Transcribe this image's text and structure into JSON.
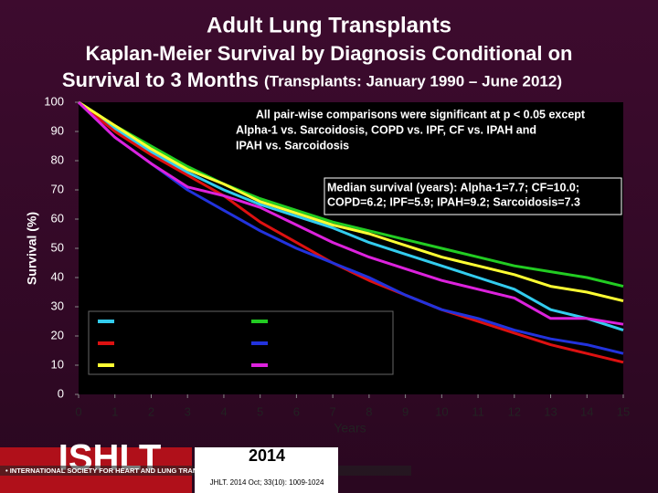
{
  "chart_data": {
    "type": "line",
    "title": "Adult Lung Transplants",
    "subtitle": [
      "Kaplan-Meier Survival by Diagnosis Conditional on",
      "Survival to 3 Months",
      "(Transplants: January 1990 – June 2012)"
    ],
    "x_label": "Years",
    "y_label": "Survival (%)",
    "x": [
      0,
      1,
      2,
      3,
      4,
      5,
      6,
      7,
      8,
      9,
      10,
      11,
      12,
      13,
      14,
      15
    ],
    "xlim": [
      0,
      15
    ],
    "xticks": [
      0,
      1,
      2,
      3,
      4,
      5,
      6,
      7,
      8,
      9,
      10,
      11,
      12,
      13,
      14,
      15
    ],
    "ylim": [
      0,
      100
    ],
    "yticks": [
      0,
      10,
      20,
      30,
      40,
      50,
      60,
      70,
      80,
      90,
      100
    ],
    "annotations": [
      [
        "All pair-wise comparisons were significant at p < 0.05 except",
        "Alpha-1 vs. Sarcoidosis, COPD vs. IPF, CF vs. IPAH and",
        "IPAH vs. Sarcoidosis"
      ],
      [
        "Median survival (years): Alpha-1=7.7; CF=10.0;",
        "COPD=6.2; IPF=5.9; IPAH=9.2; Sarcoidosis=7.3"
      ]
    ],
    "series": [
      {
        "color": "#33ccee",
        "values": [
          100,
          91,
          83,
          76,
          70,
          65,
          61,
          57,
          52,
          48,
          44,
          40,
          36,
          29,
          26,
          22
        ]
      },
      {
        "color": "#22cc22",
        "values": [
          100,
          92,
          85,
          78,
          72,
          67,
          63,
          59,
          56,
          53,
          50,
          47,
          44,
          42,
          40,
          37
        ]
      },
      {
        "color": "#dd1111",
        "values": [
          100,
          90,
          82,
          75,
          68,
          59,
          52,
          45,
          39,
          34,
          29,
          25,
          21,
          17,
          14,
          11
        ]
      },
      {
        "color": "#2233dd",
        "values": [
          100,
          88,
          79,
          70,
          63,
          56,
          50,
          45,
          40,
          34,
          29,
          26,
          22,
          19,
          17,
          14
        ]
      },
      {
        "color": "#ffff33",
        "values": [
          100,
          92,
          84,
          77,
          72,
          66,
          62,
          58,
          55,
          51,
          47,
          44,
          41,
          37,
          35,
          32
        ]
      },
      {
        "color": "#dd22dd",
        "values": [
          100,
          88,
          79,
          71,
          68,
          64,
          58,
          52,
          47,
          43,
          39,
          36,
          33,
          26,
          26,
          24
        ]
      }
    ]
  },
  "footer": {
    "logo": "ISHLT",
    "society": "• INTERNATIONAL SOCIETY FOR HEART AND LUNG TRANSPLANTATION",
    "year": "2014",
    "citation": "JHLT. 2014 Oct; 33(10): 1009-1024"
  }
}
